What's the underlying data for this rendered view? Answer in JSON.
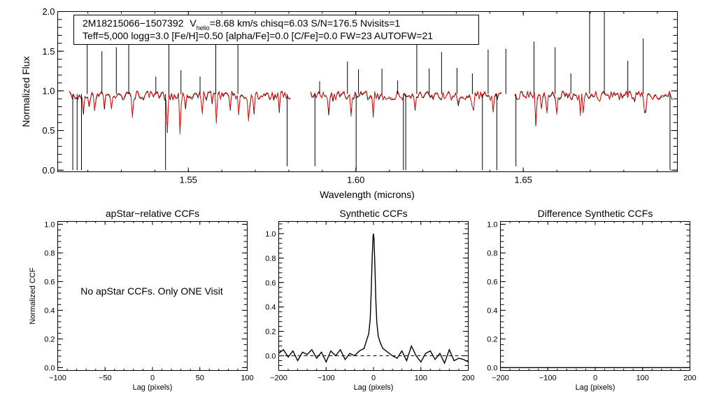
{
  "figure": {
    "header": {
      "line1": {
        "star_id": "2M18215066−1507392",
        "v_prefix": "V",
        "v_subscript": "helio",
        "v_rest": "=8.68 km/s  chisq=6.03  S/N=176.5  Nvisits=1"
      },
      "line2": "Teff=5,000 logg=3.0 [Fe/H]=0.50 [alpha/Fe]=0.0 [C/Fe]=0.0 FW=23 AUTOFW=21"
    },
    "note": "No apStar CCFs.  Only ONE Visit"
  },
  "chart_data": [
    {
      "id": "spectrum",
      "type": "line",
      "title": "",
      "xlabel": "Wavelength (microns)",
      "ylabel": "Normalized Flux",
      "xlim": [
        1.511,
        1.696
      ],
      "ylim": [
        -0.02,
        2.0
      ],
      "xticks": [
        1.55,
        1.6,
        1.65
      ],
      "xtick_labels": [
        "1.55",
        "1.60",
        "1.65"
      ],
      "yticks": [
        0,
        0.5,
        1.0,
        1.5,
        2.0
      ],
      "ytick_labels": [
        "0.0",
        "0.5",
        "1.0",
        "1.5",
        "2.0"
      ],
      "chips": [
        [
          1.5145,
          1.5805
        ],
        [
          1.5865,
          1.6435
        ],
        [
          1.6475,
          1.6945
        ]
      ],
      "continuum": 0.96,
      "model_continuum": 0.97,
      "series": [
        {
          "name": "observed",
          "color": "#000000"
        },
        {
          "name": "model",
          "color": "#ff0000"
        }
      ],
      "emission_spikes": [
        {
          "x": 1.5198,
          "y": 1.62
        },
        {
          "x": 1.5242,
          "y": 1.5
        },
        {
          "x": 1.5285,
          "y": 1.55
        },
        {
          "x": 1.5322,
          "y": 1.58
        },
        {
          "x": 1.5403,
          "y": 1.18
        },
        {
          "x": 1.5442,
          "y": 1.9
        },
        {
          "x": 1.5478,
          "y": 1.26
        },
        {
          "x": 1.5535,
          "y": 1.18
        },
        {
          "x": 1.5582,
          "y": 1.6
        },
        {
          "x": 1.5648,
          "y": 1.71
        },
        {
          "x": 1.5892,
          "y": 1.12
        },
        {
          "x": 1.5975,
          "y": 1.37
        },
        {
          "x": 1.6008,
          "y": 1.27
        },
        {
          "x": 1.6078,
          "y": 1.28
        },
        {
          "x": 1.6125,
          "y": 1.13
        },
        {
          "x": 1.6182,
          "y": 1.6
        },
        {
          "x": 1.6219,
          "y": 1.28
        },
        {
          "x": 1.6256,
          "y": 1.49
        },
        {
          "x": 1.6302,
          "y": 1.29
        },
        {
          "x": 1.6348,
          "y": 1.22
        },
        {
          "x": 1.6395,
          "y": 1.52
        },
        {
          "x": 1.6448,
          "y": 1.53
        },
        {
          "x": 1.6532,
          "y": 1.62
        },
        {
          "x": 1.6595,
          "y": 1.55
        },
        {
          "x": 1.6642,
          "y": 1.22
        },
        {
          "x": 1.6698,
          "y": 2.0
        },
        {
          "x": 1.6742,
          "y": 2.0
        },
        {
          "x": 1.6812,
          "y": 1.38
        },
        {
          "x": 1.6858,
          "y": 1.66
        }
      ],
      "drop_lines": [
        {
          "x": 1.5155,
          "y": 0.0
        },
        {
          "x": 1.5168,
          "y": 0.0
        },
        {
          "x": 1.5181,
          "y": 0.0
        },
        {
          "x": 1.5432,
          "y": 0.0
        },
        {
          "x": 1.6001,
          "y": 0.0
        },
        {
          "x": 1.6142,
          "y": 0.0
        },
        {
          "x": 1.6149,
          "y": 0.0
        },
        {
          "x": 1.6378,
          "y": 0.0
        },
        {
          "x": 1.6421,
          "y": 0.0
        },
        {
          "x": 1.6938,
          "y": 0.0
        },
        {
          "x": 1.5795,
          "y": 0.05
        },
        {
          "x": 1.5878,
          "y": 0.05
        },
        {
          "x": 1.6478,
          "y": 0.05
        }
      ]
    },
    {
      "id": "apstar-ccf",
      "type": "line",
      "title": "apStar−relative CCFs",
      "xlabel": "Lag (pixels)",
      "ylabel": "Normalized CCF",
      "xlim": [
        -100,
        100
      ],
      "ylim": [
        -0.02,
        1.02
      ],
      "xticks": [
        -100,
        -50,
        0,
        50,
        100
      ],
      "xtick_labels": [
        "−100",
        "−50",
        "0",
        "50",
        "100"
      ],
      "yticks": [
        0,
        0.2,
        0.4,
        0.6,
        0.8,
        1.0
      ],
      "ytick_labels": [
        "0.0",
        "0.2",
        "0.4",
        "0.6",
        "0.8",
        "1.0"
      ],
      "series": []
    },
    {
      "id": "synthetic-ccf",
      "type": "line",
      "title": "Synthetic CCFs",
      "xlabel": "Lag (pixels)",
      "ylabel": "",
      "xlim": [
        -200,
        200
      ],
      "ylim": [
        -0.12,
        1.1
      ],
      "xticks": [
        -200,
        -100,
        0,
        100,
        200
      ],
      "xtick_labels": [
        "−200",
        "−100",
        "0",
        "100",
        "200"
      ],
      "yticks": [
        0,
        0.2,
        0.4,
        0.6,
        0.8,
        1.0
      ],
      "ytick_labels": [
        "0.0",
        "0.2",
        "0.4",
        "0.6",
        "0.8",
        "1.0"
      ],
      "series": [
        {
          "name": "ccf",
          "color": "#000000",
          "x": [
            -200,
            -190,
            -180,
            -170,
            -160,
            -150,
            -140,
            -130,
            -120,
            -110,
            -100,
            -90,
            -80,
            -70,
            -60,
            -50,
            -40,
            -30,
            -20,
            -15,
            -10,
            -7,
            -5,
            -3,
            -1,
            0,
            1,
            3,
            5,
            7,
            10,
            15,
            20,
            30,
            40,
            50,
            60,
            70,
            80,
            90,
            100,
            110,
            120,
            130,
            140,
            150,
            160,
            170,
            180,
            190,
            200
          ],
          "y": [
            0.02,
            0.05,
            -0.01,
            0.04,
            -0.04,
            0.03,
            0.01,
            0.05,
            -0.02,
            0.03,
            -0.05,
            0.04,
            0.0,
            0.05,
            -0.03,
            0.02,
            0.0,
            0.04,
            0.06,
            0.12,
            0.18,
            0.3,
            0.5,
            0.78,
            0.97,
            1.0,
            0.96,
            0.74,
            0.45,
            0.28,
            0.16,
            0.1,
            0.06,
            0.03,
            0.0,
            -0.02,
            0.04,
            -0.04,
            0.08,
            0.0,
            -0.05,
            0.02,
            0.04,
            -0.03,
            0.02,
            -0.06,
            0.05,
            -0.04,
            -0.02,
            -0.03,
            -0.05
          ]
        },
        {
          "name": "zero",
          "color": "#000000",
          "dashed": true,
          "x": [
            -200,
            200
          ],
          "y": [
            0,
            0
          ]
        }
      ]
    },
    {
      "id": "difference-ccf",
      "type": "line",
      "title": "Difference Synthetic CCFs",
      "xlabel": "Lag (pixels)",
      "ylabel": "",
      "xlim": [
        -200,
        200
      ],
      "ylim": [
        -0.02,
        1.02
      ],
      "xticks": [
        -200,
        -100,
        0,
        100,
        200
      ],
      "xtick_labels": [
        "−200",
        "−100",
        "0",
        "100",
        "200"
      ],
      "yticks": [
        0,
        0.2,
        0.4,
        0.6,
        0.8,
        1.0
      ],
      "ytick_labels": [
        "0.0",
        "0.2",
        "0.4",
        "0.6",
        "0.8",
        "1.0"
      ],
      "series": [
        {
          "name": "difference",
          "color": "#000000",
          "x": [
            -200,
            200
          ],
          "y": [
            0,
            0
          ]
        }
      ]
    }
  ]
}
